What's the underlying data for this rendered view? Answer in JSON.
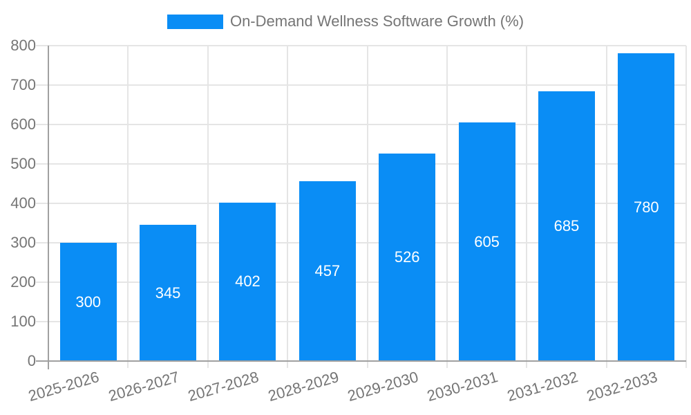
{
  "chart_data": {
    "type": "bar",
    "title": "",
    "legend_position": "top",
    "grid": true,
    "categories": [
      "2025-2026",
      "2026-2027",
      "2027-2028",
      "2028-2029",
      "2029-2030",
      "2030-2031",
      "2031-2032",
      "2032-2033"
    ],
    "series": [
      {
        "name": "On-Demand Wellness Software Growth (%)",
        "values": [
          300,
          345,
          402,
          457,
          526,
          605,
          685,
          780
        ]
      }
    ],
    "yticks": [
      0,
      100,
      200,
      300,
      400,
      500,
      600,
      700,
      800
    ],
    "ylim": [
      0,
      800
    ],
    "xlabel": "",
    "ylabel": "",
    "colors": {
      "bar": "#0A8DF5",
      "grid": "#e5e5e5",
      "axis": "#a0a0a0",
      "tick_text": "#757575",
      "legend_text": "#757575",
      "bar_label_text": "#ffffff",
      "background": "#ffffff"
    }
  }
}
